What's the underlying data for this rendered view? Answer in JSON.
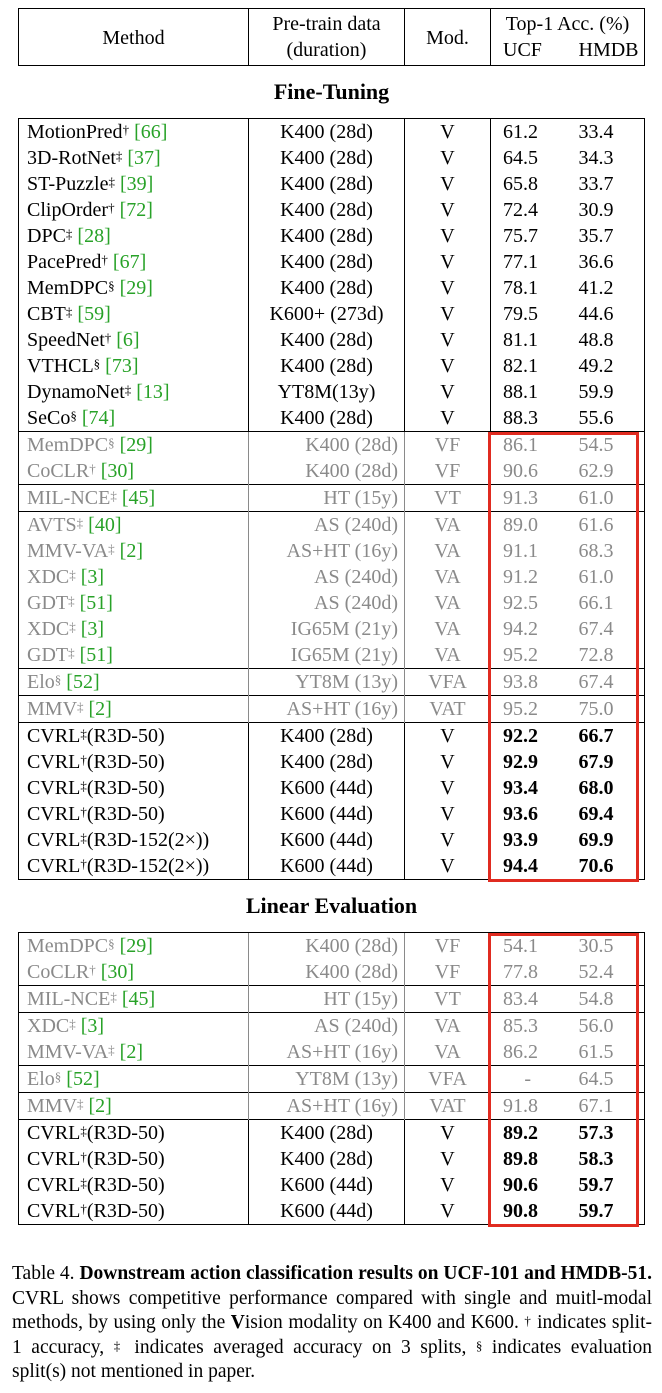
{
  "header": {
    "method": "Method",
    "pretrain_line1": "Pre-train data",
    "pretrain_line2": "(duration)",
    "modality": "Mod.",
    "acc_title": "Top-1 Acc. (%)",
    "ucf": "UCF",
    "hmdb": "HMDB"
  },
  "sections": [
    {
      "title": "Fine-Tuning",
      "groups": [
        {
          "grey": false,
          "bold": false,
          "rows": [
            {
              "method": "MotionPred",
              "mark": "†",
              "ref": "[66]",
              "data": "K400 (28d)",
              "mod": "V",
              "ucf": "61.2",
              "hmdb": "33.4"
            },
            {
              "method": "3D-RotNet",
              "mark": "‡",
              "ref": "[37]",
              "data": "K400 (28d)",
              "mod": "V",
              "ucf": "64.5",
              "hmdb": "34.3"
            },
            {
              "method": "ST-Puzzle",
              "mark": "‡",
              "ref": "[39]",
              "data": "K400 (28d)",
              "mod": "V",
              "ucf": "65.8",
              "hmdb": "33.7"
            },
            {
              "method": "ClipOrder",
              "mark": "†",
              "ref": "[72]",
              "data": "K400 (28d)",
              "mod": "V",
              "ucf": "72.4",
              "hmdb": "30.9"
            },
            {
              "method": "DPC",
              "mark": "‡",
              "ref": "[28]",
              "data": "K400 (28d)",
              "mod": "V",
              "ucf": "75.7",
              "hmdb": "35.7"
            },
            {
              "method": "PacePred",
              "mark": "†",
              "ref": "[67]",
              "data": "K400 (28d)",
              "mod": "V",
              "ucf": "77.1",
              "hmdb": "36.6"
            },
            {
              "method": "MemDPC",
              "mark": "§",
              "ref": "[29]",
              "data": "K400 (28d)",
              "mod": "V",
              "ucf": "78.1",
              "hmdb": "41.2"
            },
            {
              "method": "CBT",
              "mark": "‡",
              "ref": "[59]",
              "data": "K600+ (273d)",
              "mod": "V",
              "ucf": "79.5",
              "hmdb": "44.6"
            },
            {
              "method": "SpeedNet",
              "mark": "†",
              "ref": "[6]",
              "data": "K400 (28d)",
              "mod": "V",
              "ucf": "81.1",
              "hmdb": "48.8"
            },
            {
              "method": "VTHCL",
              "mark": "§",
              "ref": "[73]",
              "data": "K400 (28d)",
              "mod": "V",
              "ucf": "82.1",
              "hmdb": "49.2"
            },
            {
              "method": "DynamoNet",
              "mark": "‡",
              "ref": "[13]",
              "data": "YT8M(13y)",
              "mod": "V",
              "ucf": "88.1",
              "hmdb": "59.9"
            },
            {
              "method": "SeCo",
              "mark": "§",
              "ref": "[74]",
              "data": "K400 (28d)",
              "mod": "V",
              "ucf": "88.3",
              "hmdb": "55.6"
            }
          ]
        },
        {
          "grey": true,
          "bold": false,
          "rows": [
            {
              "method": "MemDPC",
              "mark": "§",
              "ref": "[29]",
              "data": "K400 (28d)",
              "mod": "VF",
              "ucf": "86.1",
              "hmdb": "54.5"
            },
            {
              "method": "CoCLR",
              "mark": "†",
              "ref": "[30]",
              "data": "K400 (28d)",
              "mod": "VF",
              "ucf": "90.6",
              "hmdb": "62.9"
            }
          ]
        },
        {
          "grey": true,
          "bold": false,
          "rows": [
            {
              "method": "MIL-NCE",
              "mark": "‡",
              "ref": "[45]",
              "data": "HT (15y)",
              "mod": "VT",
              "ucf": "91.3",
              "hmdb": "61.0"
            }
          ]
        },
        {
          "grey": true,
          "bold": false,
          "rows": [
            {
              "method": "AVTS",
              "mark": "‡",
              "ref": "[40]",
              "data": "AS (240d)",
              "mod": "VA",
              "ucf": "89.0",
              "hmdb": "61.6"
            },
            {
              "method": "MMV-VA",
              "mark": "‡",
              "ref": "[2]",
              "data": "AS+HT (16y)",
              "mod": "VA",
              "ucf": "91.1",
              "hmdb": "68.3"
            },
            {
              "method": "XDC",
              "mark": "‡",
              "ref": "[3]",
              "data": "AS (240d)",
              "mod": "VA",
              "ucf": "91.2",
              "hmdb": "61.0"
            },
            {
              "method": "GDT",
              "mark": "‡",
              "ref": "[51]",
              "data": "AS (240d)",
              "mod": "VA",
              "ucf": "92.5",
              "hmdb": "66.1"
            },
            {
              "method": "XDC",
              "mark": "‡",
              "ref": "[3]",
              "data": "IG65M (21y)",
              "mod": "VA",
              "ucf": "94.2",
              "hmdb": "67.4"
            },
            {
              "method": "GDT",
              "mark": "‡",
              "ref": "[51]",
              "data": "IG65M (21y)",
              "mod": "VA",
              "ucf": "95.2",
              "hmdb": "72.8"
            }
          ]
        },
        {
          "grey": true,
          "bold": false,
          "rows": [
            {
              "method": "Elo",
              "mark": "§",
              "ref": "[52]",
              "data": "YT8M (13y)",
              "mod": "VFA",
              "ucf": "93.8",
              "hmdb": "67.4"
            }
          ]
        },
        {
          "grey": true,
          "bold": false,
          "rows": [
            {
              "method": "MMV",
              "mark": "‡",
              "ref": "[2]",
              "data": "AS+HT (16y)",
              "mod": "VAT",
              "ucf": "95.2",
              "hmdb": "75.0"
            }
          ]
        },
        {
          "grey": false,
          "bold": true,
          "rows": [
            {
              "method": "CVRL",
              "mark": "‡",
              "suffix": "(R3D-50)",
              "data": "K400 (28d)",
              "mod": "V",
              "ucf": "92.2",
              "hmdb": "66.7"
            },
            {
              "method": "CVRL",
              "mark": "†",
              "suffix": "(R3D-50)",
              "data": "K400 (28d)",
              "mod": "V",
              "ucf": "92.9",
              "hmdb": "67.9"
            },
            {
              "method": "CVRL",
              "mark": "‡",
              "suffix": "(R3D-50)",
              "data": "K600 (44d)",
              "mod": "V",
              "ucf": "93.4",
              "hmdb": "68.0"
            },
            {
              "method": "CVRL",
              "mark": "†",
              "suffix": "(R3D-50)",
              "data": "K600 (44d)",
              "mod": "V",
              "ucf": "93.6",
              "hmdb": "69.4"
            },
            {
              "method": "CVRL",
              "mark": "‡",
              "suffix": "(R3D-152(2×))",
              "data": "K600 (44d)",
              "mod": "V",
              "ucf": "93.9",
              "hmdb": "69.9"
            },
            {
              "method": "CVRL",
              "mark": "†",
              "suffix": "(R3D-152(2×))",
              "data": "K600 (44d)",
              "mod": "V",
              "ucf": "94.4",
              "hmdb": "70.6"
            }
          ]
        }
      ]
    },
    {
      "title": "Linear Evaluation",
      "groups": [
        {
          "grey": true,
          "bold": false,
          "rows": [
            {
              "method": "MemDPC",
              "mark": "§",
              "ref": "[29]",
              "data": "K400 (28d)",
              "mod": "VF",
              "ucf": "54.1",
              "hmdb": "30.5"
            },
            {
              "method": "CoCLR",
              "mark": "†",
              "ref": "[30]",
              "data": "K400 (28d)",
              "mod": "VF",
              "ucf": "77.8",
              "hmdb": "52.4"
            }
          ]
        },
        {
          "grey": true,
          "bold": false,
          "rows": [
            {
              "method": "MIL-NCE",
              "mark": "‡",
              "ref": "[45]",
              "data": "HT (15y)",
              "mod": "VT",
              "ucf": "83.4",
              "hmdb": "54.8"
            }
          ]
        },
        {
          "grey": true,
          "bold": false,
          "rows": [
            {
              "method": "XDC",
              "mark": "‡",
              "ref": "[3]",
              "data": "AS (240d)",
              "mod": "VA",
              "ucf": "85.3",
              "hmdb": "56.0"
            },
            {
              "method": "MMV-VA",
              "mark": "‡",
              "ref": "[2]",
              "data": "AS+HT (16y)",
              "mod": "VA",
              "ucf": "86.2",
              "hmdb": "61.5"
            }
          ]
        },
        {
          "grey": true,
          "bold": false,
          "rows": [
            {
              "method": "Elo",
              "mark": "§",
              "ref": "[52]",
              "data": "YT8M (13y)",
              "mod": "VFA",
              "ucf": "-",
              "hmdb": "64.5"
            }
          ]
        },
        {
          "grey": true,
          "bold": false,
          "rows": [
            {
              "method": "MMV",
              "mark": "‡",
              "ref": "[2]",
              "data": "AS+HT (16y)",
              "mod": "VAT",
              "ucf": "91.8",
              "hmdb": "67.1"
            }
          ]
        },
        {
          "grey": false,
          "bold": true,
          "rows": [
            {
              "method": "CVRL",
              "mark": "‡",
              "suffix": "(R3D-50)",
              "data": "K400 (28d)",
              "mod": "V",
              "ucf": "89.2",
              "hmdb": "57.3"
            },
            {
              "method": "CVRL",
              "mark": "†",
              "suffix": "(R3D-50)",
              "data": "K400 (28d)",
              "mod": "V",
              "ucf": "89.8",
              "hmdb": "58.3"
            },
            {
              "method": "CVRL",
              "mark": "‡",
              "suffix": "(R3D-50)",
              "data": "K600 (44d)",
              "mod": "V",
              "ucf": "90.6",
              "hmdb": "59.7"
            },
            {
              "method": "CVRL",
              "mark": "†",
              "suffix": "(R3D-50)",
              "data": "K600 (44d)",
              "mod": "V",
              "ucf": "90.8",
              "hmdb": "59.7"
            }
          ]
        }
      ]
    }
  ],
  "caption": {
    "label": "Table 4. ",
    "bold_title": "Downstream action classification results on UCF-101 and HMDB-51.",
    "text_1": " CVRL shows competitive performance compared with single and muitl-modal methods, by using only the ",
    "v_bold": "V",
    "text_2": "ision modality on K400 and K600. ",
    "dagger": "†",
    "text_3": " indicates split-1 accuracy, ",
    "ddagger": "‡",
    "text_4": " indicates averaged accuracy on 3 splits, ",
    "section": "§",
    "text_5": " indicates evaluation split(s) not mentioned in paper."
  },
  "colors": {
    "highlight_box": "#e02b20",
    "grey_text": "#8a8a8a",
    "ref_green": "#28a228"
  }
}
